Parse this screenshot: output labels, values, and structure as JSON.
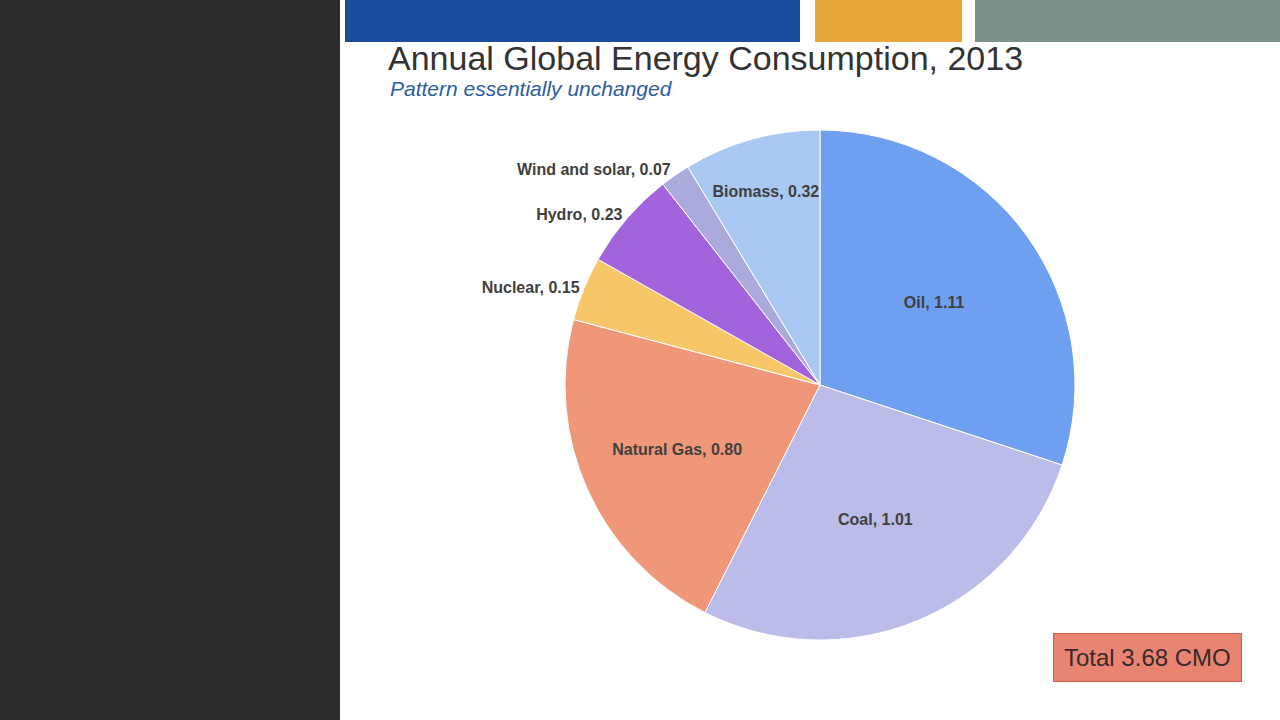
{
  "chart_data": {
    "type": "pie",
    "title": "Annual Global Energy Consumption, 2013",
    "subtitle": "Pattern essentially unchanged",
    "categories": [
      "Oil",
      "Coal",
      "Natural Gas",
      "Nuclear",
      "Hydro",
      "Wind and solar",
      "Biomass"
    ],
    "values": [
      1.11,
      1.01,
      0.8,
      0.15,
      0.23,
      0.07,
      0.32
    ],
    "value_labels": [
      "Oil, 1.11",
      "Coal, 1.01",
      "Natural Gas, 0.80",
      "Nuclear, 0.15",
      "Hydro, 0.23",
      "Wind and solar, 0.07",
      "Biomass, 0.32"
    ],
    "colors": [
      "#6f9ff0",
      "#bcbcea",
      "#f0977a",
      "#f6c667",
      "#a263dc",
      "#aaaadc",
      "#a9c9f2"
    ],
    "data_labels": true,
    "annotations": [
      "Total 3.68 CMO"
    ]
  }
}
